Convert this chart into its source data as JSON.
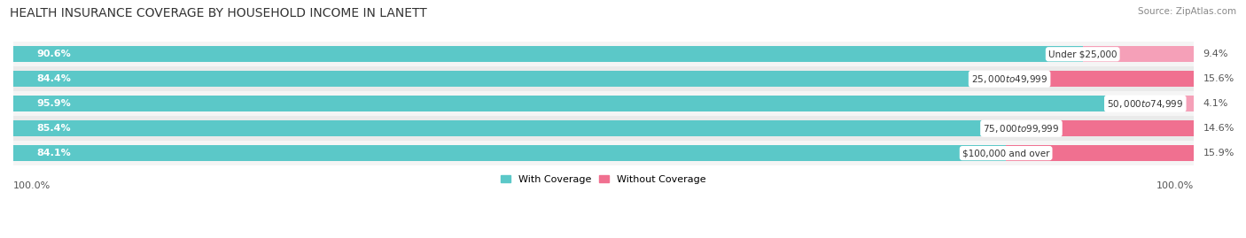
{
  "title": "HEALTH INSURANCE COVERAGE BY HOUSEHOLD INCOME IN LANETT",
  "source": "Source: ZipAtlas.com",
  "categories": [
    "Under $25,000",
    "$25,000 to $49,999",
    "$50,000 to $74,999",
    "$75,000 to $99,999",
    "$100,000 and over"
  ],
  "with_coverage": [
    90.6,
    84.4,
    95.9,
    85.4,
    84.1
  ],
  "without_coverage": [
    9.4,
    15.6,
    4.1,
    14.6,
    15.9
  ],
  "coverage_color": "#5bc8c8",
  "no_coverage_color_row0": "#f5a0b8",
  "no_coverage_color_row1": "#f07090",
  "no_coverage_colors": [
    "#f5a0b8",
    "#f07090",
    "#f5a0b8",
    "#f07090",
    "#f07090"
  ],
  "bar_bg_color": "#e8e8e8",
  "row_bg_even": "#f5f5f5",
  "row_bg_odd": "#eaeaea",
  "legend_coverage_label": "With Coverage",
  "legend_no_coverage_label": "Without Coverage",
  "legend_no_coverage_color": "#f07090",
  "x_left_label": "100.0%",
  "x_right_label": "100.0%",
  "title_fontsize": 10,
  "label_fontsize": 8,
  "source_fontsize": 7.5
}
